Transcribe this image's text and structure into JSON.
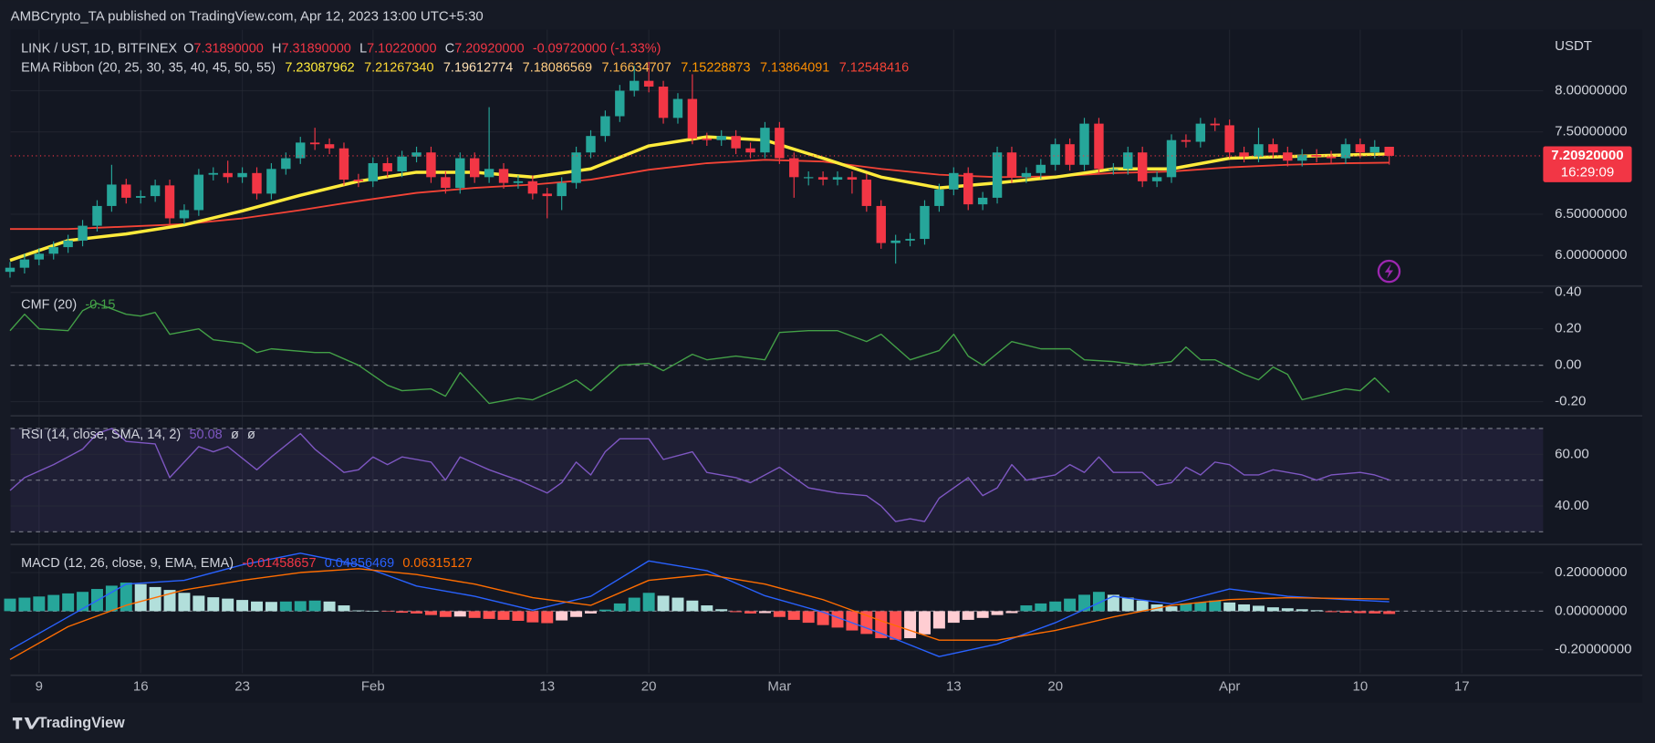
{
  "header": {
    "title": "AMBCrypto_TA published on TradingView.com, Apr 12, 2023 13:00 UTC+5:30"
  },
  "footer": {
    "brand": "TradingView"
  },
  "chart_data": {
    "type": "candlestick",
    "xlim": [
      0,
      105.6
    ],
    "xticks": [
      {
        "value": 2,
        "label": "9"
      },
      {
        "value": 9,
        "label": "16"
      },
      {
        "value": 16,
        "label": "23"
      },
      {
        "value": 25,
        "label": "Feb"
      },
      {
        "value": 37,
        "label": "13"
      },
      {
        "value": 44,
        "label": "20"
      },
      {
        "value": 53,
        "label": "Mar"
      },
      {
        "value": 65,
        "label": "13"
      },
      {
        "value": 72,
        "label": "20"
      },
      {
        "value": 84,
        "label": "Apr"
      },
      {
        "value": 93,
        "label": "10"
      },
      {
        "value": 100,
        "label": "17"
      }
    ],
    "ylim": [
      5.64,
      8.74
    ],
    "yticks": [
      {
        "value": 6,
        "label": "6.00000000"
      },
      {
        "value": 6.5,
        "label": "6.50000000"
      },
      {
        "value": 7.5,
        "label": "7.50000000"
      },
      {
        "value": 8,
        "label": "8.00000000"
      }
    ],
    "y_unit": "USDT",
    "grid": true,
    "up_color": "#26a69a",
    "down_color": "#f23645",
    "open": [
      5.8,
      5.85,
      5.95,
      6.02,
      6.1,
      6.18,
      6.36,
      6.6,
      6.86,
      6.7,
      6.72,
      6.85,
      6.45,
      6.55,
      6.98,
      7.0,
      6.95,
      7.0,
      6.75,
      7.05,
      7.18,
      7.37,
      7.35,
      7.3,
      6.92,
      6.9,
      7.12,
      7.02,
      7.2,
      7.25,
      6.95,
      6.82,
      7.18,
      6.95,
      7.05,
      6.88,
      6.9,
      6.75,
      6.72,
      6.88,
      7.25,
      7.45,
      7.69,
      8.0,
      8.12,
      8.05,
      7.67,
      7.9,
      7.42,
      7.4,
      7.45,
      7.3,
      7.25,
      7.55,
      7.18,
      6.95,
      6.95,
      6.92,
      6.95,
      6.92,
      6.6,
      6.15,
      6.18,
      6.2,
      6.6,
      6.8,
      7.0,
      6.62,
      6.7,
      7.25,
      6.95,
      7.0,
      7.1,
      7.35,
      7.1,
      7.6,
      7.05,
      7.05,
      7.25,
      6.9,
      6.95,
      7.4,
      7.38,
      7.6,
      7.58,
      7.25,
      7.2,
      7.35,
      7.25,
      7.15,
      7.22,
      7.2,
      7.18,
      7.35,
      7.25,
      7.3189
    ],
    "high": [
      5.92,
      6.02,
      6.09,
      6.17,
      6.25,
      6.43,
      6.67,
      7.1,
      6.93,
      6.79,
      6.92,
      6.92,
      6.62,
      7.05,
      7.07,
      7.15,
      7.07,
      7.07,
      7.12,
      7.25,
      7.44,
      7.55,
      7.42,
      7.37,
      6.99,
      7.19,
      7.19,
      7.27,
      7.32,
      7.32,
      7.02,
      7.25,
      7.25,
      7.8,
      7.12,
      6.97,
      6.97,
      6.82,
      6.95,
      7.32,
      7.52,
      7.76,
      8.07,
      8.3,
      8.35,
      8.12,
      7.97,
      8.2,
      7.49,
      7.52,
      7.52,
      7.37,
      7.62,
      7.62,
      7.25,
      7.02,
      7.02,
      7.02,
      7.02,
      6.99,
      6.67,
      6.25,
      6.27,
      6.67,
      6.87,
      7.07,
      7.07,
      6.77,
      7.32,
      7.32,
      7.07,
      7.17,
      7.42,
      7.42,
      7.67,
      7.67,
      7.12,
      7.32,
      7.32,
      7.02,
      7.47,
      7.47,
      7.67,
      7.67,
      7.65,
      7.32,
      7.55,
      7.42,
      7.32,
      7.29,
      7.29,
      7.27,
      7.42,
      7.42,
      7.4,
      7.3189
    ],
    "low": [
      5.73,
      5.78,
      5.88,
      5.95,
      6.03,
      6.11,
      6.29,
      6.53,
      6.63,
      6.63,
      6.65,
      6.38,
      6.38,
      6.48,
      6.91,
      6.88,
      6.88,
      6.68,
      6.68,
      6.98,
      7.11,
      7.28,
      7.23,
      6.85,
      6.83,
      6.83,
      6.95,
      6.95,
      7.13,
      6.88,
      6.75,
      6.75,
      6.88,
      6.88,
      6.81,
      6.81,
      6.68,
      6.45,
      6.55,
      6.81,
      7.18,
      7.38,
      7.62,
      7.93,
      7.98,
      7.6,
      7.6,
      7.35,
      7.33,
      7.33,
      7.23,
      7.18,
      7.18,
      7.11,
      6.7,
      6.85,
      6.85,
      6.85,
      6.75,
      6.53,
      6.08,
      5.9,
      6.11,
      6.13,
      6.53,
      6.73,
      6.55,
      6.55,
      6.63,
      6.88,
      6.88,
      6.93,
      7.03,
      7.03,
      7.03,
      6.98,
      6.98,
      6.98,
      6.83,
      6.83,
      6.88,
      7.31,
      7.31,
      7.51,
      7.18,
      7.13,
      7.13,
      7.18,
      7.08,
      7.08,
      7.13,
      7.11,
      7.11,
      7.18,
      7.18,
      7.1022
    ],
    "close": [
      5.85,
      5.95,
      6.02,
      6.1,
      6.18,
      6.36,
      6.6,
      6.86,
      6.7,
      6.72,
      6.85,
      6.45,
      6.55,
      6.98,
      7.0,
      6.95,
      7.0,
      6.75,
      7.05,
      7.18,
      7.37,
      7.35,
      7.3,
      6.92,
      6.9,
      7.12,
      7.02,
      7.2,
      7.25,
      6.95,
      6.82,
      7.18,
      6.95,
      7.05,
      6.88,
      6.9,
      6.75,
      6.72,
      6.88,
      7.25,
      7.45,
      7.69,
      8.0,
      8.12,
      8.05,
      7.67,
      7.9,
      7.42,
      7.4,
      7.45,
      7.3,
      7.25,
      7.55,
      7.18,
      6.95,
      6.95,
      6.92,
      6.95,
      6.92,
      6.6,
      6.15,
      6.18,
      6.2,
      6.6,
      6.8,
      7.0,
      6.62,
      6.7,
      7.25,
      6.95,
      7.0,
      7.1,
      7.35,
      7.1,
      7.6,
      7.05,
      7.05,
      7.25,
      6.9,
      6.95,
      7.4,
      7.38,
      7.6,
      7.58,
      7.25,
      7.2,
      7.35,
      7.25,
      7.15,
      7.22,
      7.2,
      7.18,
      7.35,
      7.25,
      7.3189,
      7.2092
    ],
    "legend": {
      "symbol": "LINK / UST, 1D, BITFINEX",
      "ohlc": [
        {
          "label": "O",
          "value": "7.31890000"
        },
        {
          "label": "H",
          "value": "7.31890000"
        },
        {
          "label": "L",
          "value": "7.10220000"
        },
        {
          "label": "C",
          "value": "7.20920000"
        }
      ],
      "change": "-0.09720000 (-1.33%)"
    },
    "last_price_label": "7.20920000",
    "countdown": "16:29:09",
    "ribbon": {
      "title": "EMA Ribbon (20, 25, 30, 35, 40, 45, 50, 55)",
      "value_labels": [
        "7.23087962",
        "7.21267340",
        "7.19612774",
        "7.18086569",
        "7.16634707",
        "7.15228873",
        "7.13864091",
        "7.12548416"
      ],
      "label_colors": [
        "#ffeb3b",
        "#fdd835",
        "#ffe0b2",
        "#ffcc80",
        "#ffb74d",
        "#ff9800",
        "#fb8c00",
        "#f44336"
      ],
      "x": [
        0,
        4,
        8,
        12,
        16,
        20,
        24,
        28,
        32,
        36,
        40,
        44,
        48,
        52,
        56,
        60,
        64,
        68,
        72,
        76,
        80,
        84,
        88,
        92,
        95
      ],
      "series": [
        {
          "color": "#ffeb3b",
          "values": [
            5.94,
            6.18,
            6.26,
            6.37,
            6.54,
            6.73,
            6.9,
            7.01,
            7.01,
            6.95,
            7.05,
            7.33,
            7.44,
            7.4,
            7.18,
            6.95,
            6.82,
            6.88,
            6.95,
            7.05,
            7.05,
            7.18,
            7.2,
            7.22,
            7.23087962
          ]
        },
        {
          "color": "#f44336",
          "values": [
            6.32,
            6.32,
            6.35,
            6.38,
            6.45,
            6.55,
            6.66,
            6.76,
            6.82,
            6.86,
            6.92,
            7.04,
            7.12,
            7.16,
            7.14,
            7.05,
            6.98,
            6.95,
            6.96,
            7.0,
            7.02,
            7.07,
            7.1,
            7.12,
            7.12548416
          ]
        }
      ]
    },
    "indicators": [
      {
        "type": "line",
        "title": "CMF (20)",
        "value_label": "-0.15",
        "color": "#43a047",
        "ylim": [
          -0.272,
          0.429
        ],
        "yticks": [
          {
            "value": 0.4,
            "label": "0.40"
          },
          {
            "value": 0.2,
            "label": "0.20"
          },
          {
            "value": 0,
            "label": "0.00"
          },
          {
            "value": -0.2,
            "label": "-0.20"
          }
        ],
        "levels": [
          0
        ],
        "x": [
          0,
          1,
          2,
          4,
          5,
          6,
          8,
          9,
          10,
          11,
          13,
          14,
          16,
          17,
          18,
          21,
          22,
          24,
          26,
          27,
          29,
          30,
          31,
          33,
          35,
          36,
          38,
          39,
          40,
          42,
          44,
          45,
          47,
          48,
          50,
          52,
          53,
          55,
          57,
          59,
          60,
          62,
          64,
          65,
          66,
          67,
          69,
          71,
          73,
          74,
          76,
          78,
          80,
          81,
          82,
          83,
          85,
          86,
          87,
          88,
          89,
          91,
          92,
          93,
          94,
          95
        ],
        "values": [
          0.19,
          0.28,
          0.2,
          0.19,
          0.3,
          0.34,
          0.28,
          0.27,
          0.29,
          0.17,
          0.2,
          0.14,
          0.12,
          0.07,
          0.09,
          0.07,
          0.07,
          0.0,
          -0.11,
          -0.14,
          -0.13,
          -0.17,
          -0.04,
          -0.21,
          -0.18,
          -0.19,
          -0.12,
          -0.08,
          -0.14,
          0.0,
          0.01,
          -0.03,
          0.06,
          0.03,
          0.05,
          0.03,
          0.18,
          0.19,
          0.19,
          0.13,
          0.17,
          0.03,
          0.08,
          0.17,
          0.05,
          0.0,
          0.13,
          0.09,
          0.09,
          0.03,
          0.02,
          0.0,
          0.02,
          0.1,
          0.03,
          0.03,
          -0.05,
          -0.08,
          -0.01,
          -0.05,
          -0.19,
          -0.15,
          -0.13,
          -0.14,
          -0.07,
          -0.15
        ]
      },
      {
        "type": "line",
        "title": "RSI (14, close, SMA, 14, 2)",
        "value_label": "50.08",
        "extra": [
          "ø",
          "ø"
        ],
        "color": "#7e57c2",
        "band_color": "rgba(126,87,194,0.12)",
        "ylim": [
          25.5,
          74.5
        ],
        "yticks": [
          {
            "value": 60,
            "label": "60.00"
          },
          {
            "value": 40,
            "label": "40.00"
          }
        ],
        "levels": [
          70,
          50,
          30
        ],
        "x": [
          0,
          1,
          3,
          5,
          6,
          7,
          8,
          10,
          11,
          13,
          14,
          15,
          17,
          18,
          20,
          21,
          23,
          24,
          25,
          26,
          27,
          29,
          30,
          31,
          33,
          35,
          37,
          38,
          39,
          40,
          41,
          42,
          44,
          45,
          47,
          48,
          50,
          51,
          53,
          55,
          57,
          59,
          60,
          61,
          62,
          63,
          64,
          66,
          67,
          68,
          69,
          70,
          72,
          73,
          74,
          75,
          76,
          78,
          79,
          80,
          81,
          82,
          83,
          84,
          85,
          86,
          87,
          89,
          90,
          91,
          93,
          94,
          95
        ],
        "values": [
          46,
          51,
          56,
          62,
          68,
          70,
          65,
          64,
          51,
          63,
          61,
          63,
          54,
          59,
          68,
          62,
          53,
          54,
          59,
          56,
          59,
          57,
          50,
          59,
          54,
          50,
          45,
          49,
          57,
          52,
          61,
          66,
          66,
          58,
          61,
          53,
          51,
          49,
          55,
          47,
          45,
          44,
          40,
          34,
          35,
          34,
          43,
          51,
          44,
          47,
          56,
          50,
          52,
          56,
          53,
          59,
          53,
          53,
          48,
          49,
          55,
          52,
          57,
          56,
          52,
          52,
          54,
          52,
          50,
          52,
          53,
          52,
          50.08
        ]
      },
      {
        "type": "macd",
        "title": "MACD (12, 26, close, 9, EMA, EMA)",
        "ylim": [
          -0.321,
          0.34
        ],
        "yticks": [
          {
            "value": 0.2,
            "label": "0.20000000"
          },
          {
            "value": 0,
            "label": "0.00000000"
          },
          {
            "value": -0.2,
            "label": "-0.20000000"
          }
        ],
        "levels": [
          0
        ],
        "histogram": {
          "value_label": "-0.01458657",
          "label_color": "#f23645",
          "colors": [
            "#26a69a",
            "#b2dfdb",
            "#ffcdd2",
            "#ff5252"
          ],
          "values": [
            0.065,
            0.07,
            0.076,
            0.084,
            0.092,
            0.1,
            0.115,
            0.132,
            0.148,
            0.14,
            0.125,
            0.11,
            0.095,
            0.08,
            0.072,
            0.065,
            0.058,
            0.05,
            0.048,
            0.05,
            0.052,
            0.055,
            0.05,
            0.03,
            0.004,
            0.002,
            -0.003,
            -0.008,
            -0.012,
            -0.02,
            -0.03,
            -0.028,
            -0.035,
            -0.04,
            -0.045,
            -0.05,
            -0.058,
            -0.062,
            -0.048,
            -0.03,
            -0.012,
            0.008,
            0.04,
            0.07,
            0.095,
            0.08,
            0.07,
            0.055,
            0.03,
            0.01,
            -0.005,
            -0.012,
            -0.01,
            -0.03,
            -0.045,
            -0.06,
            -0.072,
            -0.085,
            -0.1,
            -0.118,
            -0.14,
            -0.148,
            -0.14,
            -0.12,
            -0.09,
            -0.06,
            -0.045,
            -0.035,
            -0.02,
            -0.01,
            0.03,
            0.04,
            0.05,
            0.065,
            0.085,
            0.1,
            0.085,
            0.07,
            0.055,
            0.035,
            0.025,
            0.04,
            0.045,
            0.055,
            0.045,
            0.035,
            0.028,
            0.02,
            0.015,
            0.01,
            0.005,
            -0.005,
            -0.008,
            -0.01,
            -0.012,
            -0.01458657
          ]
        },
        "x": [
          0,
          4,
          8,
          12,
          16,
          20,
          24,
          28,
          32,
          36,
          40,
          44,
          48,
          52,
          56,
          60,
          64,
          68,
          72,
          76,
          80,
          84,
          88,
          92,
          95
        ],
        "series": [
          {
            "color": "#2962ff",
            "value_label": "0.04856469",
            "values": [
              -0.2,
              -0.03,
              0.14,
              0.16,
              0.24,
              0.3,
              0.24,
              0.13,
              0.077,
              0.005,
              0.077,
              0.26,
              0.21,
              0.08,
              -0.005,
              -0.115,
              -0.235,
              -0.17,
              -0.06,
              0.077,
              0.038,
              0.115,
              0.077,
              0.06,
              0.04856469
            ]
          },
          {
            "color": "#ff6d00",
            "value_label": "0.06315127",
            "values": [
              -0.25,
              -0.08,
              0.03,
              0.11,
              0.16,
              0.2,
              0.22,
              0.19,
              0.14,
              0.07,
              0.03,
              0.16,
              0.19,
              0.14,
              0.06,
              -0.05,
              -0.15,
              -0.15,
              -0.1,
              -0.03,
              0.03,
              0.06,
              0.07,
              0.065,
              0.06315127
            ]
          }
        ]
      }
    ]
  }
}
